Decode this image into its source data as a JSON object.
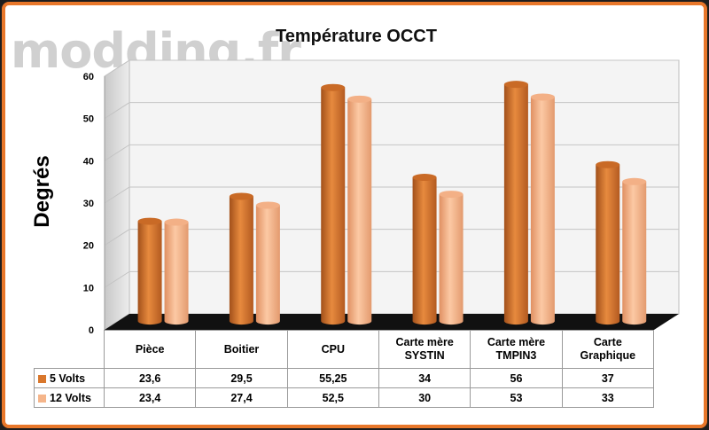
{
  "watermark": "modding.fr",
  "chart_data": {
    "type": "bar",
    "title": "Température OCCT",
    "ylabel": "Degrés",
    "ylim": [
      0,
      60
    ],
    "yticks": [
      0,
      10,
      20,
      30,
      40,
      50,
      60
    ],
    "categories": [
      "Pièce",
      "Boitier",
      "CPU",
      "Carte mère SYSTIN",
      "Carte mère TMPIN3",
      "Carte Graphique"
    ],
    "category_lines": [
      [
        "Pièce"
      ],
      [
        "Boitier"
      ],
      [
        "CPU"
      ],
      [
        "Carte mère",
        "SYSTIN"
      ],
      [
        "Carte mère",
        "TMPIN3"
      ],
      [
        "Carte",
        "Graphique"
      ]
    ],
    "series": [
      {
        "name": "5 Volts",
        "color": "#d9772c",
        "values": [
          23.6,
          29.5,
          55.25,
          34,
          56,
          37
        ],
        "labels": [
          "23,6",
          "29,5",
          "55,25",
          "34",
          "56",
          "37"
        ]
      },
      {
        "name": "12 Volts",
        "color": "#f5b58a",
        "values": [
          23.4,
          27.4,
          52.5,
          30,
          53,
          33
        ],
        "labels": [
          "23,4",
          "27,4",
          "52,5",
          "30",
          "53",
          "33"
        ]
      }
    ],
    "grid": true,
    "legend": "data-table"
  }
}
